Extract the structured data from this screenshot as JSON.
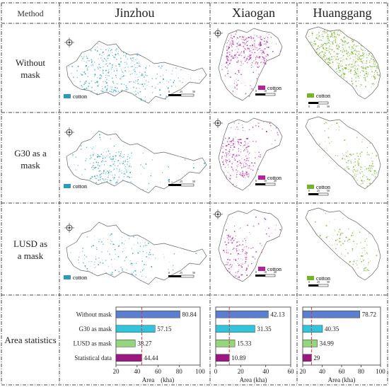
{
  "headers": {
    "method": "Method",
    "cities": [
      "Jinzhou",
      "Xiaogan",
      "Huanggang"
    ]
  },
  "rows": [
    {
      "label_lines": [
        "Without",
        "mask"
      ]
    },
    {
      "label_lines": [
        "G30 as a",
        "mask"
      ]
    },
    {
      "label_lines": [
        "LUSD as",
        "a mask"
      ]
    },
    {
      "label_lines": [
        "Area statistics"
      ]
    }
  ],
  "legend_label": "cotton",
  "colors": {
    "jinzhou": "#2a9bbf",
    "xiaogan": "#b5219e",
    "huanggang": "#76b32a",
    "bar_without_mask": "#5b7fd0",
    "bar_g30": "#32c4da",
    "bar_lusd": "#93d67e",
    "bar_statistical": "#9c177f",
    "ref_line": "#d23c3c"
  },
  "scalebars": {
    "jinzhou": [
      "0",
      "25",
      "50"
    ],
    "xiaogan": [
      "0",
      "10",
      "20"
    ],
    "huanggang": [
      "0",
      "25",
      "50"
    ]
  },
  "chart_data": [
    {
      "type": "bar",
      "orientation": "horizontal",
      "panel": "Jinzhou",
      "categories": [
        "Without mask",
        "G30 as mask",
        "LUSD as mask",
        "Statistical data"
      ],
      "values": [
        80.84,
        57.15,
        38.27,
        44.44
      ],
      "value_labels": [
        "80.84",
        "57.15",
        "38.27",
        "44.44"
      ],
      "xlabel": "Area　(kha)",
      "xlim": [
        20,
        100
      ],
      "xticks": [
        "20",
        "40",
        "60",
        "80",
        "100"
      ],
      "reference_line": 44.44
    },
    {
      "type": "bar",
      "orientation": "horizontal",
      "panel": "Xiaogan",
      "categories": [
        "Without mask",
        "G30 as mask",
        "LUSD as mask",
        "Statistical data"
      ],
      "values": [
        42.13,
        31.35,
        15.33,
        10.89
      ],
      "value_labels": [
        "42.13",
        "31.35",
        "15.33",
        "10.89"
      ],
      "xlabel": "Area (kha)",
      "xlim": [
        0,
        60
      ],
      "xticks": [
        "0",
        "20",
        "40",
        "60"
      ],
      "reference_line": 10.89
    },
    {
      "type": "bar",
      "orientation": "horizontal",
      "panel": "Huanggang",
      "categories": [
        "Without mask",
        "G30 as mask",
        "LUSD as mask",
        "Statistical data"
      ],
      "values": [
        78.72,
        40.35,
        34.99,
        29
      ],
      "value_labels": [
        "78.72",
        "40.35",
        "34.99",
        "29"
      ],
      "xlabel": "Area (kha)",
      "xlim": [
        20,
        100
      ],
      "xticks": [
        "20",
        "40",
        "60",
        "80",
        "100"
      ],
      "reference_line": 29
    }
  ]
}
